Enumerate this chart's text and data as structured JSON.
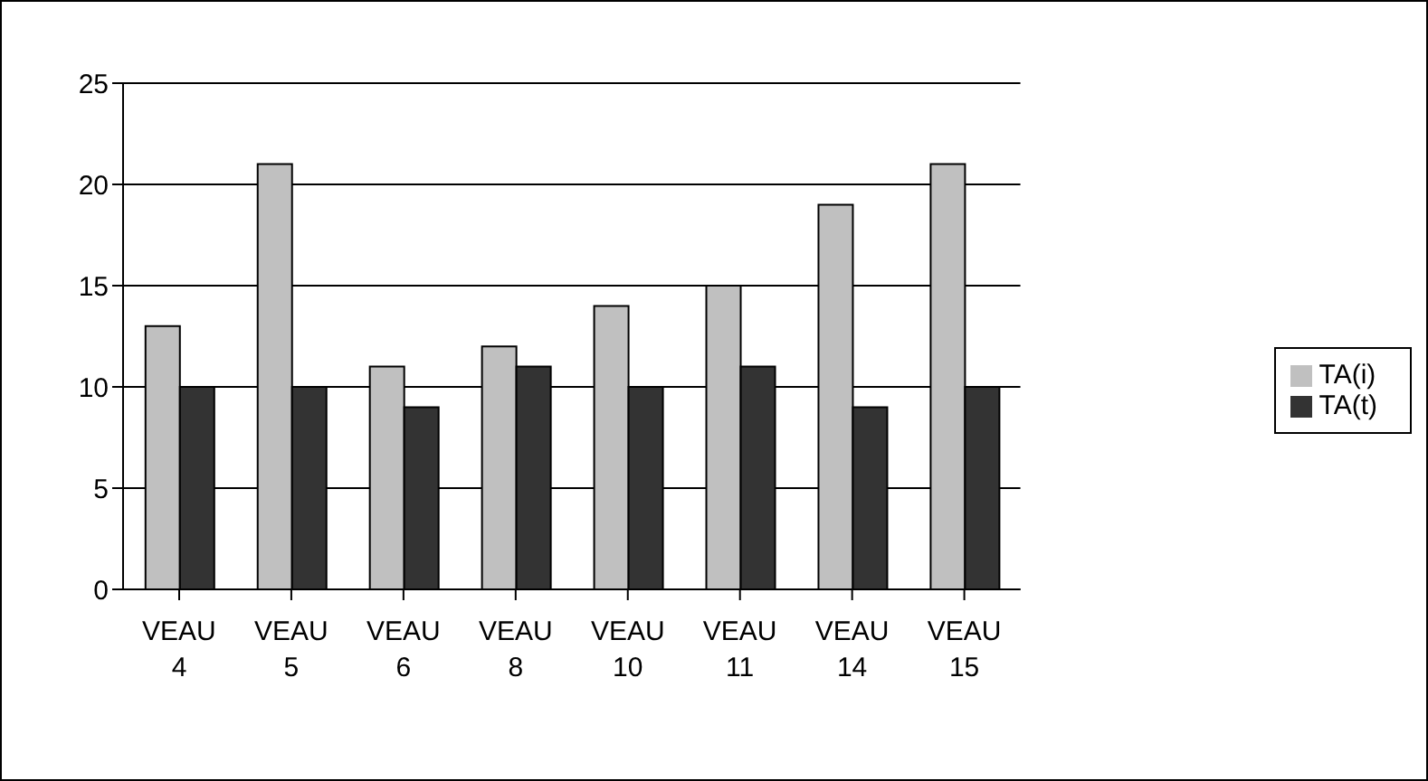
{
  "chart_data": {
    "type": "bar",
    "categories": [
      "VEAU 4",
      "VEAU 5",
      "VEAU 6",
      "VEAU 8",
      "VEAU 10",
      "VEAU 11",
      "VEAU 14",
      "VEAU 15"
    ],
    "series": [
      {
        "name": "TA(i)",
        "color": "#c0c0c0",
        "values": [
          13,
          21,
          11,
          12,
          14,
          15,
          19,
          21
        ]
      },
      {
        "name": "TA(t)",
        "color": "#333333",
        "values": [
          10,
          10,
          9,
          11,
          10,
          11,
          9,
          10
        ]
      }
    ],
    "ylim": [
      0,
      25
    ],
    "yticks": [
      0,
      5,
      10,
      15,
      20,
      25
    ],
    "grid": "y",
    "legend": "right"
  }
}
